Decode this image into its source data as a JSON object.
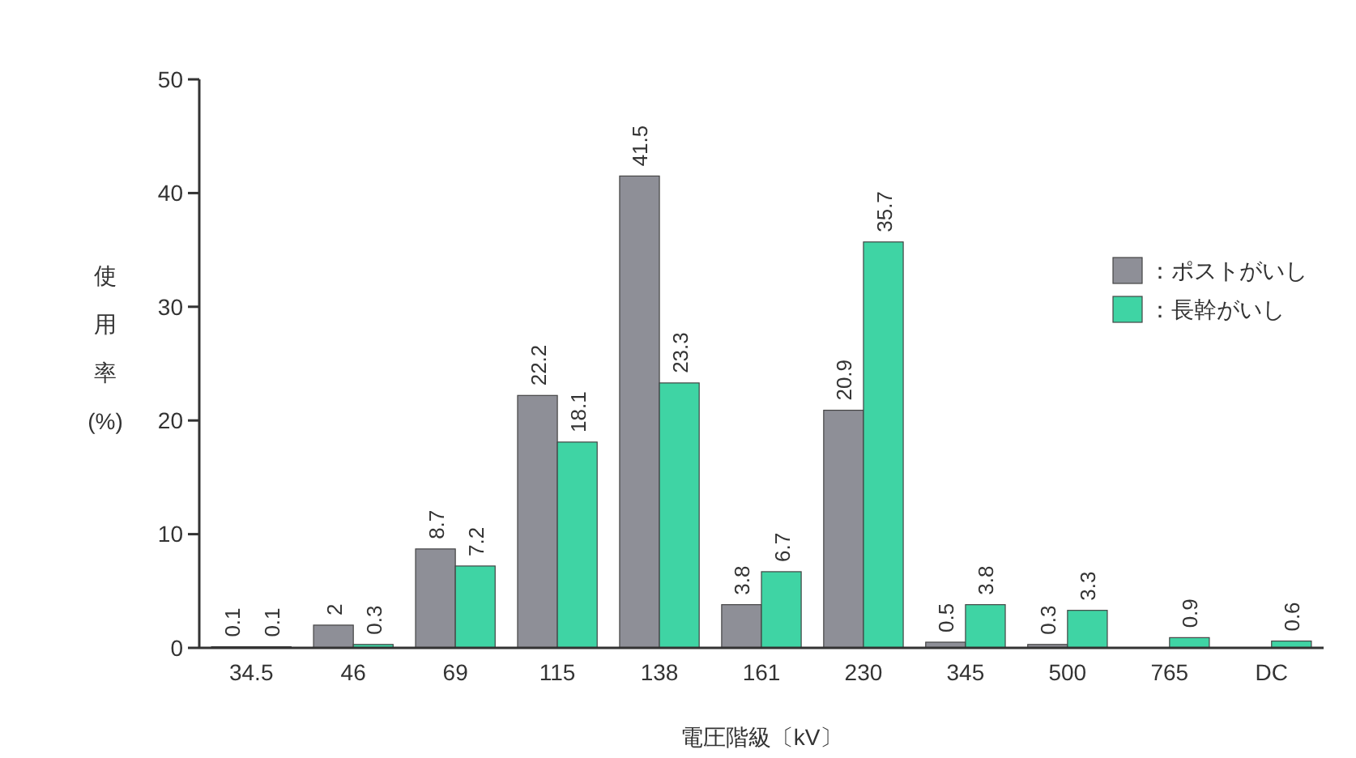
{
  "chart_data": {
    "type": "bar",
    "xlabel": "電圧階級〔kV〕",
    "ylabel": "使用率(%)",
    "categories": [
      "34.5",
      "46",
      "69",
      "115",
      "138",
      "161",
      "230",
      "345",
      "500",
      "765",
      "DC"
    ],
    "series": [
      {
        "name": "：ポストがいし",
        "color": "#8e8f97",
        "values": [
          0.1,
          2,
          8.7,
          22.2,
          41.5,
          3.8,
          20.9,
          0.5,
          0.3,
          null,
          null
        ]
      },
      {
        "name": "：長幹がいし",
        "color": "#3fd4a4",
        "values": [
          0.1,
          0.3,
          7.2,
          18.1,
          23.3,
          6.7,
          35.7,
          3.8,
          3.3,
          0.9,
          0.6
        ]
      }
    ],
    "ylim": [
      0,
      50
    ],
    "yticks": [
      0,
      10,
      20,
      30,
      40,
      50
    ],
    "data_labels": true,
    "legend": "right",
    "grid": false
  }
}
